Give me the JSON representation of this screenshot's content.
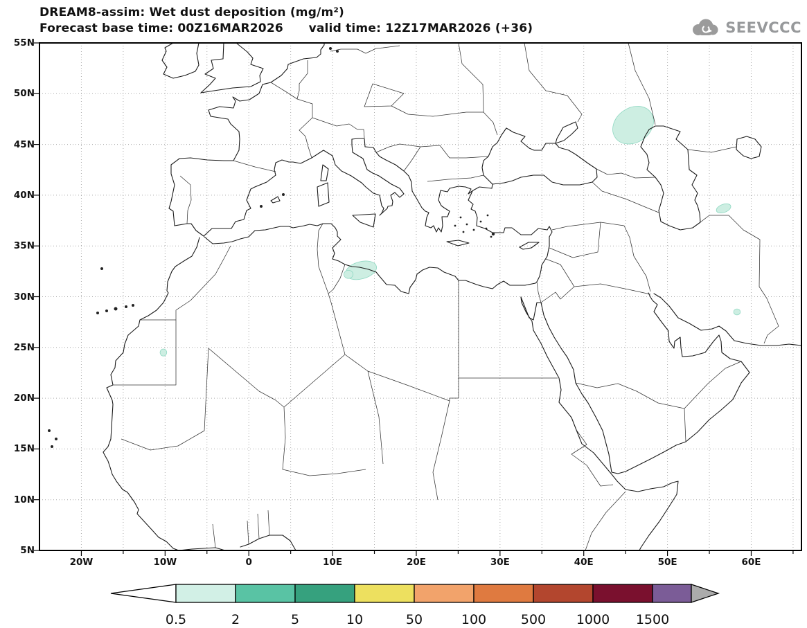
{
  "header": {
    "line1": "DREAM8-assim: Wet dust deposition (mg/m²)",
    "line2": "Forecast base time: 00Z16MAR2026      valid time: 12Z17MAR2026 (+36)"
  },
  "logo": {
    "text": "SEEVCCC",
    "color": "#97999b"
  },
  "map": {
    "lon_min": -25,
    "lon_max": 66,
    "lat_min": 5,
    "lat_max": 55,
    "grid_step_deg": 5,
    "grid_color": "#aaaaaa",
    "lat_labels": [
      {
        "value": 55,
        "label": "55N"
      },
      {
        "value": 50,
        "label": "50N"
      },
      {
        "value": 45,
        "label": "45N"
      },
      {
        "value": 40,
        "label": "40N"
      },
      {
        "value": 35,
        "label": "35N"
      },
      {
        "value": 30,
        "label": "30N"
      },
      {
        "value": 25,
        "label": "25N"
      },
      {
        "value": 20,
        "label": "20N"
      },
      {
        "value": 15,
        "label": "15N"
      },
      {
        "value": 10,
        "label": "10N"
      },
      {
        "value": 5,
        "label": "5N"
      }
    ],
    "lon_labels": [
      {
        "value": -20,
        "label": "20W"
      },
      {
        "value": -10,
        "label": "10W"
      },
      {
        "value": 0,
        "label": "0"
      },
      {
        "value": 10,
        "label": "10E"
      },
      {
        "value": 20,
        "label": "20E"
      },
      {
        "value": 30,
        "label": "30E"
      },
      {
        "value": 40,
        "label": "40E"
      },
      {
        "value": 50,
        "label": "50E"
      },
      {
        "value": 60,
        "label": "60E"
      }
    ]
  },
  "colorbar": {
    "labels": [
      "0.5",
      "2",
      "5",
      "10",
      "50",
      "100",
      "500",
      "1000",
      "1500"
    ],
    "arrow_left_color": "#ffffff",
    "segment_colors": [
      "#d2f0e6",
      "#59c3a4",
      "#36a17e",
      "#ede05f",
      "#f2a36b",
      "#df7a40",
      "#b3462e",
      "#7a102e"
    ],
    "overflow_color": "#7b5c97",
    "arrow_right_color": "#ababab"
  },
  "chart_data": {
    "type": "heatmap",
    "title": "DREAM8-assim: Wet dust deposition (mg/m²)",
    "forecast_base_time": "00Z16MAR2026",
    "valid_time": "12Z17MAR2026",
    "forecast_hour": "+36",
    "units": "mg/m²",
    "lon_range": [
      -25,
      66
    ],
    "lat_range": [
      5,
      55
    ],
    "lon_ticks": [
      "20W",
      "10W",
      "0",
      "10E",
      "20E",
      "30E",
      "40E",
      "50E",
      "60E"
    ],
    "lat_ticks": [
      "5N",
      "10N",
      "15N",
      "20N",
      "25N",
      "30N",
      "35N",
      "40N",
      "45N",
      "50N",
      "55N"
    ],
    "levels": [
      0.5,
      2,
      5,
      10,
      50,
      100,
      500,
      1000,
      1500
    ],
    "grid": true,
    "legend_position": "bottom",
    "patch_fill": "#cdeee2",
    "patch_stroke": "#8fd8c2",
    "regions": [
      {
        "name": "northwest-caspian",
        "lon": 45.9,
        "lat": 46.9,
        "rx_deg": 2.6,
        "ry_deg": 1.7,
        "rot_deg": -35,
        "value_bin": "0.5-2"
      },
      {
        "name": "libya-coast",
        "lon": 13.4,
        "lat": 32.6,
        "rx_deg": 1.9,
        "ry_deg": 0.85,
        "rot_deg": -15,
        "value_bin": "0.5-2"
      },
      {
        "name": "libya-coast-west",
        "lon": 11.9,
        "lat": 32.2,
        "rx_deg": 0.55,
        "ry_deg": 0.4,
        "rot_deg": 0,
        "value_bin": "0.5-2"
      },
      {
        "name": "mauritania",
        "lon": -10.2,
        "lat": 24.5,
        "rx_deg": 0.4,
        "ry_deg": 0.35,
        "rot_deg": 0,
        "value_bin": "0.5-2"
      },
      {
        "name": "turkmenistan-se-caspian",
        "lon": 56.7,
        "lat": 38.7,
        "rx_deg": 0.9,
        "ry_deg": 0.4,
        "rot_deg": -20,
        "value_bin": "0.5-2"
      },
      {
        "name": "south-iran",
        "lon": 58.3,
        "lat": 28.5,
        "rx_deg": 0.4,
        "ry_deg": 0.3,
        "rot_deg": 0,
        "value_bin": "0.5-2"
      }
    ]
  }
}
